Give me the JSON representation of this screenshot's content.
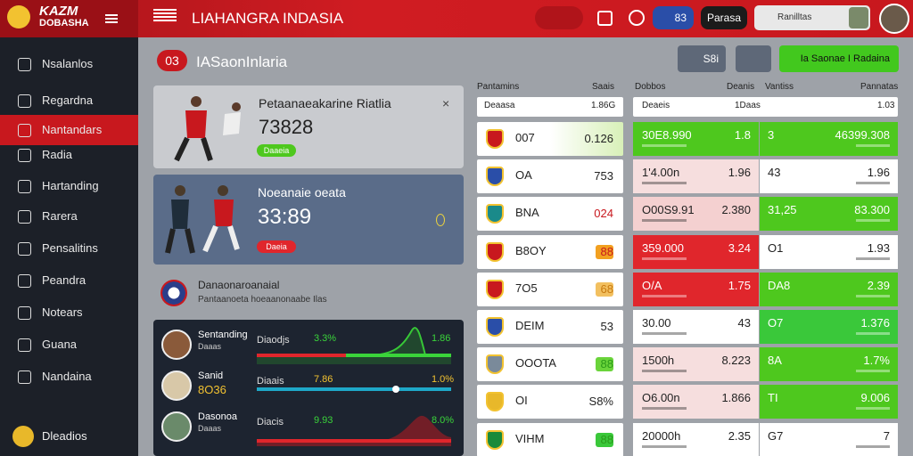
{
  "top_bar": {
    "logo_line1": "KAZM",
    "logo_line2": "DOBASHA",
    "title": "LIAHANGRA INDASIA",
    "count": "83",
    "button": "Parasa",
    "user": "Ranilltas"
  },
  "sidebar": {
    "items": [
      "Nsalanlos",
      "Regardna",
      "Nantandars",
      "Radia",
      "Hartanding",
      "Rarera",
      "Pensalitins",
      "Peandra",
      "Notears",
      "Guana",
      "Nandaina"
    ],
    "footer": "Dleadios"
  },
  "header": {
    "badge": "03",
    "title": "IASaonInlaria",
    "button": "S8i",
    "green_button": "Ia Saonae I Radaina"
  },
  "cards": [
    {
      "title": "Petaanaeakarine Riatlia",
      "value": "73828",
      "pill": "Daaeia"
    },
    {
      "title": "Noeanaie oeata",
      "value": "33:89",
      "pill": "Daeia"
    },
    {
      "title": "Danaonaroanaial",
      "subtitle": "Pantaanoeta hoeaanonaabe Ilas"
    }
  ],
  "stats": [
    {
      "name": "Sentanding",
      "sub": "Daaas",
      "label": "Diaodjs",
      "v1": "3.3%",
      "v2": "1.86"
    },
    {
      "name": "Sanid",
      "sub": "8O36",
      "label": "Diaais",
      "v1": "7.86",
      "v2": "1.0%"
    },
    {
      "name": "Dasonoa",
      "sub": "Daaas",
      "label": "Diacis",
      "v1": "9.93",
      "v2": "8.0%"
    }
  ],
  "left_table": {
    "headers": [
      "Pantamins",
      "Saais"
    ],
    "summary": [
      "Deaasa",
      "1.86G"
    ],
    "rows": [
      [
        "007",
        "0.126"
      ],
      [
        "OA",
        "753"
      ],
      [
        "BNA",
        "024"
      ],
      [
        "B8OY",
        "88"
      ],
      [
        "7O5",
        "68"
      ],
      [
        "DEIM",
        "53"
      ],
      [
        "OOOTA",
        "88"
      ],
      [
        "OI",
        "S8%"
      ],
      [
        "VIHM",
        "88"
      ]
    ]
  },
  "right_table": {
    "headers": [
      "Dobbos",
      "Deanis",
      "Vantiss",
      "Pannatas"
    ],
    "summary": [
      "Deaeis",
      "1Daas",
      "1.03"
    ],
    "rows": [
      [
        "30E8.990",
        "1.8",
        "3",
        "46399.308"
      ],
      [
        "1'4.00n",
        "1.96",
        "43",
        "1.96"
      ],
      [
        "O00S9.91",
        "2.380",
        "31,25",
        "83.300"
      ],
      [
        "359.000",
        "3.24",
        "O1",
        "1.93"
      ],
      [
        "O/A",
        "1.75",
        "DA8",
        "2.39"
      ],
      [
        "30.00",
        "43",
        "O7",
        "1.376"
      ],
      [
        "1500h",
        "8.223",
        "8A",
        "1.7%"
      ],
      [
        "O6.00n",
        "1.866",
        "TI",
        "9.006"
      ],
      [
        "20000h",
        "2.35",
        "G7",
        "7"
      ]
    ]
  }
}
